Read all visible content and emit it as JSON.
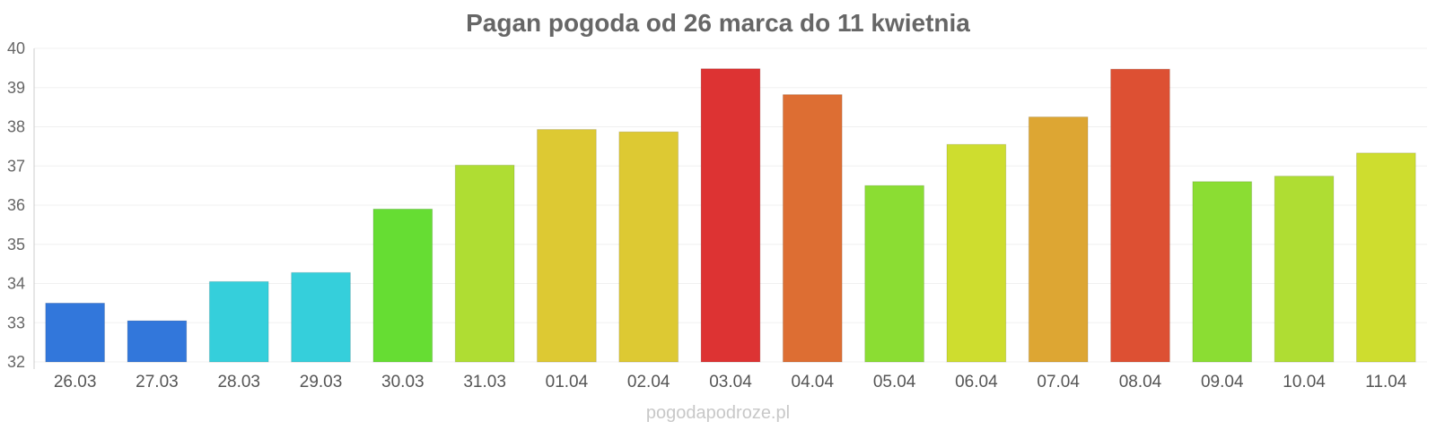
{
  "chart_data": {
    "type": "bar",
    "title": "Pagan pogoda od 26 marca do 11 kwietnia",
    "xlabel": "",
    "ylabel": "",
    "ylim": [
      32,
      40
    ],
    "yticks": [
      32,
      33,
      34,
      35,
      36,
      37,
      38,
      39,
      40
    ],
    "grid": true,
    "legend": "none",
    "categories": [
      "26.03",
      "27.03",
      "28.03",
      "29.03",
      "30.03",
      "31.03",
      "01.04",
      "02.04",
      "03.04",
      "04.04",
      "05.04",
      "06.04",
      "07.04",
      "08.04",
      "09.04",
      "10.04",
      "11.04"
    ],
    "values": [
      33.5,
      33.05,
      34.05,
      34.28,
      35.9,
      37.02,
      37.93,
      37.87,
      39.48,
      38.82,
      36.5,
      37.55,
      38.25,
      39.47,
      36.6,
      36.74,
      37.33
    ],
    "colors": [
      "#3277db",
      "#3277db",
      "#35cfdb",
      "#35cfdb",
      "#66dd33",
      "#afdd33",
      "#ddc933",
      "#ddc933",
      "#dd3333",
      "#dd6e33",
      "#8bdd33",
      "#cedd2f",
      "#dda633",
      "#dd5033",
      "#8bdd33",
      "#afdd33",
      "#cedd2f"
    ]
  },
  "footer": {
    "text": "pogodapodroze.pl"
  }
}
